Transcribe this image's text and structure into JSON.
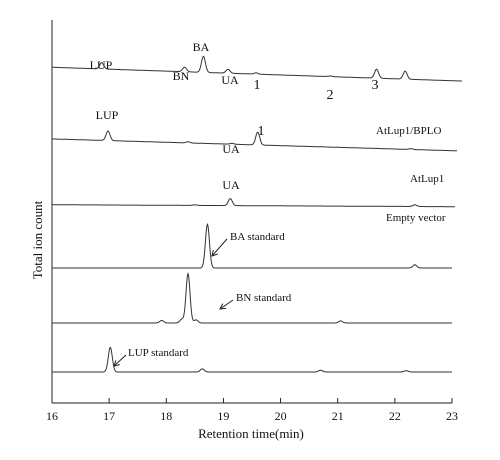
{
  "chart_data": {
    "type": "line",
    "title": "",
    "xlabel": "Retention time(min)",
    "ylabel": "Total ion count",
    "xlim": [
      16,
      23
    ],
    "x_ticks": [
      16,
      17,
      18,
      19,
      20,
      21,
      22,
      23
    ],
    "grid": false,
    "legend": "none",
    "series": [
      {
        "name": "AtLup1/BPLO",
        "baseline": 0.21,
        "slope": -0.06,
        "peaks": [
          {
            "x": 16.87,
            "height": 0.2,
            "label": "LUP"
          },
          {
            "x": 18.32,
            "height": 0.14,
            "label": "BN"
          },
          {
            "x": 18.65,
            "height": 0.5,
            "label": "BA"
          },
          {
            "x": 19.08,
            "height": 0.12,
            "label": "UA"
          },
          {
            "x": 19.57,
            "height": 0.04,
            "label": "1"
          },
          {
            "x": 20.87,
            "height": 0.02,
            "label": "2"
          },
          {
            "x": 21.68,
            "height": 0.28,
            "label": "3"
          },
          {
            "x": 22.18,
            "height": 0.25,
            "label": ""
          }
        ]
      },
      {
        "name": "AtLup1",
        "baseline": 0.11,
        "slope": -0.06,
        "peaks": [
          {
            "x": 16.98,
            "height": 0.34,
            "label": "LUP"
          },
          {
            "x": 18.38,
            "height": 0.04,
            "label": ""
          },
          {
            "x": 19.15,
            "height": 0.03,
            "label": "UA"
          },
          {
            "x": 19.6,
            "height": 0.46,
            "label": "1"
          },
          {
            "x": 22.28,
            "height": 0.03,
            "label": ""
          }
        ]
      },
      {
        "name": "Empty vector",
        "baseline": 0.01,
        "slope": -0.01,
        "peaks": [
          {
            "x": 18.5,
            "height": 0.02,
            "label": ""
          },
          {
            "x": 19.12,
            "height": 0.25,
            "label": "UA"
          },
          {
            "x": 22.35,
            "height": 0.06,
            "label": ""
          }
        ]
      },
      {
        "name": "BA standard",
        "baseline": 0.0,
        "slope": 0.0,
        "peaks": [
          {
            "x": 18.72,
            "height": 0.95,
            "label": ""
          },
          {
            "x": 22.35,
            "height": 0.07,
            "label": ""
          }
        ]
      },
      {
        "name": "BN standard",
        "baseline": 0.0,
        "slope": 0.0,
        "peaks": [
          {
            "x": 17.92,
            "height": 0.05,
            "label": ""
          },
          {
            "x": 18.27,
            "height": 0.07,
            "label": ""
          },
          {
            "x": 18.38,
            "height": 0.95,
            "label": ""
          },
          {
            "x": 18.52,
            "height": 0.06,
            "label": ""
          },
          {
            "x": 21.05,
            "height": 0.04,
            "label": ""
          }
        ]
      },
      {
        "name": "LUP standard",
        "baseline": 0.0,
        "slope": 0.0,
        "peaks": [
          {
            "x": 17.02,
            "height": 0.55,
            "label": ""
          },
          {
            "x": 18.63,
            "height": 0.07,
            "label": ""
          },
          {
            "x": 20.7,
            "height": 0.04,
            "label": ""
          },
          {
            "x": 22.2,
            "height": 0.03,
            "label": ""
          }
        ]
      }
    ]
  }
}
